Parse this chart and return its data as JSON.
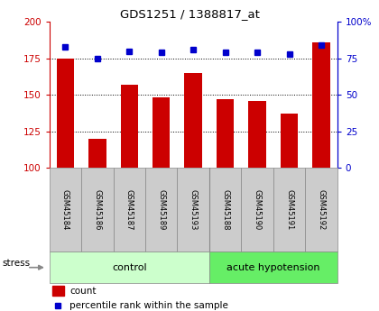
{
  "title": "GDS1251 / 1388817_at",
  "samples": [
    "GSM45184",
    "GSM45186",
    "GSM45187",
    "GSM45189",
    "GSM45193",
    "GSM45188",
    "GSM45190",
    "GSM45191",
    "GSM45192"
  ],
  "counts": [
    175,
    120,
    157,
    148,
    165,
    147,
    146,
    137,
    186
  ],
  "percentiles": [
    83,
    75,
    80,
    79,
    81,
    79,
    79,
    78,
    84
  ],
  "bar_color": "#cc0000",
  "dot_color": "#0000cc",
  "ylim_left": [
    100,
    200
  ],
  "ylim_right": [
    0,
    100
  ],
  "yticks_left": [
    100,
    125,
    150,
    175,
    200
  ],
  "yticks_right": [
    0,
    25,
    50,
    75,
    100
  ],
  "ytick_labels_right": [
    "0",
    "25",
    "50",
    "75",
    "100%"
  ],
  "left_tick_color": "#cc0000",
  "right_tick_color": "#0000cc",
  "stress_label": "stress",
  "legend_count": "count",
  "legend_percentile": "percentile rank within the sample",
  "bg_color": "#ffffff",
  "sample_bg": "#cccccc",
  "control_color": "#ccffcc",
  "acute_color": "#66ee66",
  "n_control": 5,
  "n_acute": 4
}
